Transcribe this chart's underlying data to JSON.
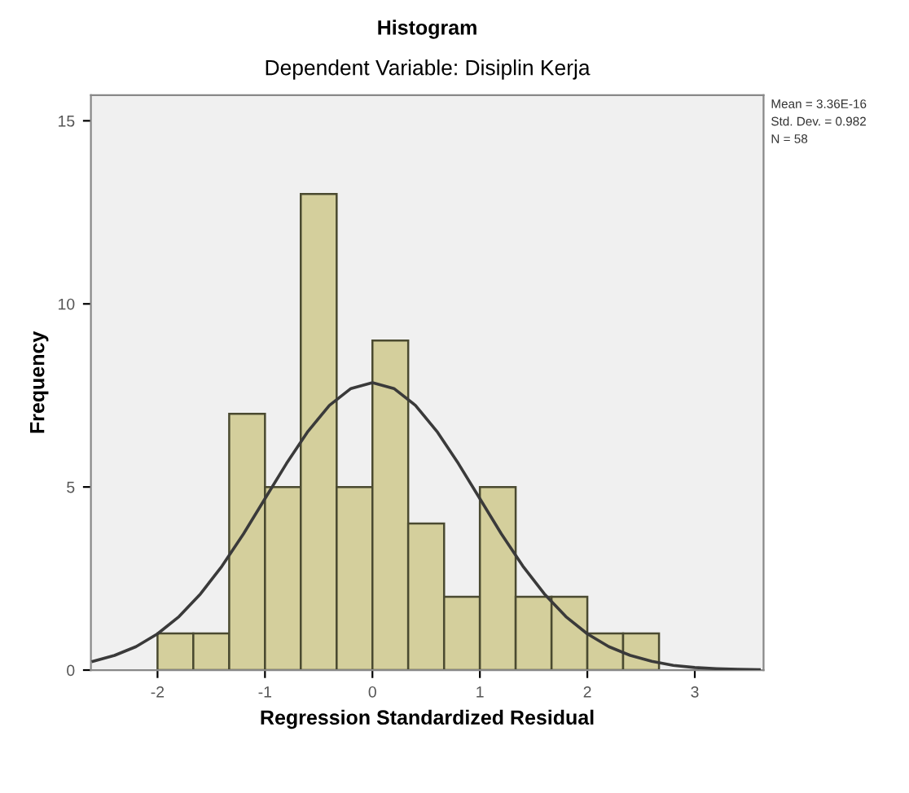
{
  "chart_data": {
    "type": "histogram",
    "title": "Histogram",
    "subtitle": "Dependent Variable: Disiplin Kerja",
    "xlabel": "Regression Standardized Residual",
    "ylabel": "Frequency",
    "bins": [
      -2,
      -1.667,
      -1.333,
      -1,
      -0.667,
      -0.333,
      0,
      0.333,
      0.667,
      1,
      1.333,
      1.667,
      2,
      2.333,
      2.667
    ],
    "values": [
      1,
      1,
      7,
      5,
      13,
      5,
      9,
      4,
      2,
      5,
      2,
      2,
      1,
      1
    ],
    "color": "#d4cf9c",
    "series": [
      {
        "type": "line",
        "color": "#3a3a3a",
        "x": [
          -2.6,
          -2.4,
          -2.2,
          -2.0,
          -1.8,
          -1.6,
          -1.4,
          -1.2,
          -1.0,
          -0.8,
          -0.6,
          -0.4,
          -0.2,
          0,
          0.2,
          0.4,
          0.6,
          0.8,
          1.0,
          1.2,
          1.4,
          1.6,
          1.8,
          2.0,
          2.2,
          2.4,
          2.6,
          2.8,
          3.0,
          3.2,
          3.4,
          3.6
        ],
        "values": [
          0.24,
          0.4,
          0.64,
          0.99,
          1.46,
          2.08,
          2.84,
          3.72,
          4.68,
          5.64,
          6.52,
          7.23,
          7.69,
          7.85,
          7.69,
          7.23,
          6.52,
          5.64,
          4.68,
          3.72,
          2.84,
          2.08,
          1.46,
          0.99,
          0.64,
          0.4,
          0.24,
          0.13,
          0.07,
          0.04,
          0.02,
          0.01
        ]
      }
    ],
    "xlim": [
      -2.62,
      3.64
    ],
    "ylim": [
      0,
      15.7
    ],
    "xticks": [
      -2,
      -1,
      0,
      1,
      2,
      3
    ],
    "yticks": [
      0,
      5,
      10,
      15
    ],
    "annotations": [
      "Mean = 3.36E-16",
      "Std. Dev. = 0.982",
      "N = 58"
    ],
    "grid": false,
    "legend": false
  }
}
